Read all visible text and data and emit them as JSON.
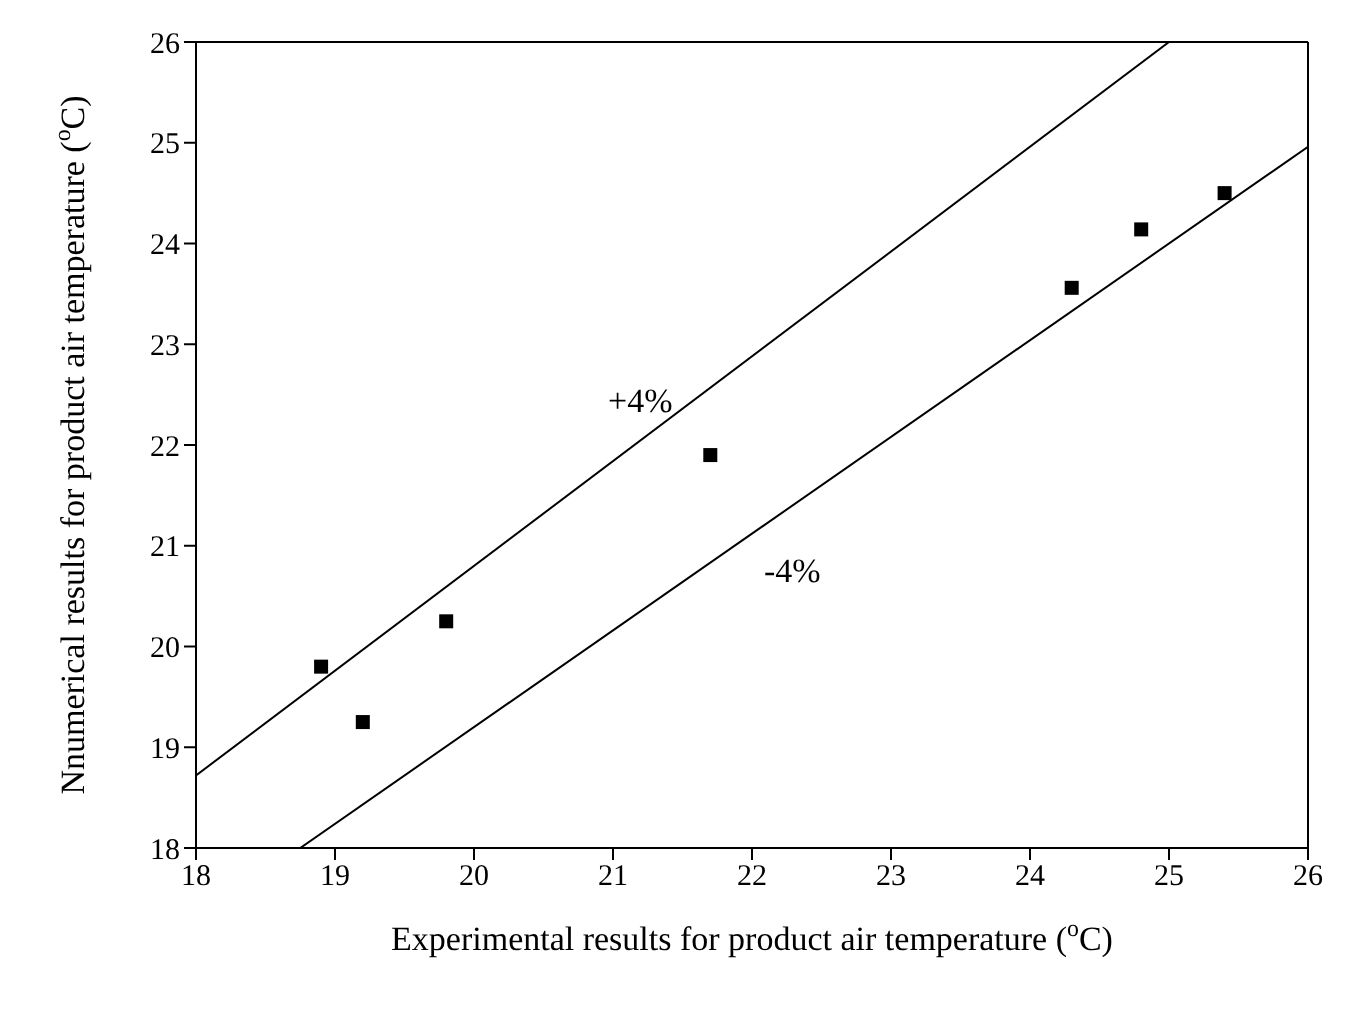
{
  "chart_data": {
    "type": "scatter",
    "xlabel": "Experimental results for product air temperature ($^{o}$C)",
    "ylabel": "Nnumerical results for product air temperature ($^{o}$C)",
    "xlim": [
      18,
      26
    ],
    "ylim": [
      18,
      26
    ],
    "xticks": [
      18,
      19,
      20,
      21,
      22,
      23,
      24,
      25,
      26
    ],
    "yticks": [
      18,
      19,
      20,
      21,
      22,
      23,
      24,
      25,
      26
    ],
    "legend": false,
    "marker": "square",
    "series": [
      {
        "color": "#000000",
        "x": [
          18.9,
          19.2,
          19.8,
          21.7,
          24.3,
          24.8,
          25.4
        ],
        "values": [
          19.8,
          19.25,
          20.25,
          21.9,
          23.56,
          24.14,
          24.5
        ]
      },
      {
        "type": "line",
        "color": "#000000",
        "x": [
          18,
          25
        ],
        "values": [
          18.72,
          26
        ],
        "marker": "none",
        "line_style": "solid"
      },
      {
        "type": "line",
        "color": "#000000",
        "x": [
          18.75,
          26
        ],
        "values": [
          18,
          24.96
        ],
        "marker": "none",
        "line_style": "solid"
      }
    ],
    "annotations": [
      "+4%",
      "-4%"
    ]
  }
}
